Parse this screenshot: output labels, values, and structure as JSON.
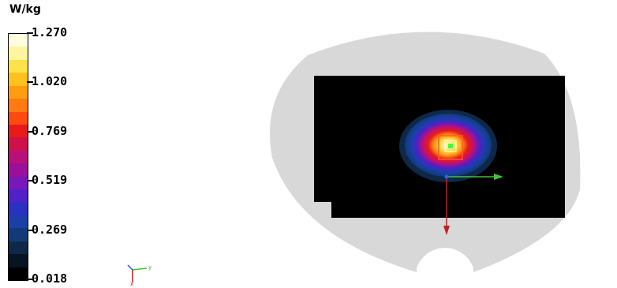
{
  "legend": {
    "unit": "W/kg",
    "ticks": [
      "1.270",
      "1.020",
      "0.769",
      "0.519",
      "0.269",
      "0.018"
    ],
    "colors": [
      "#fffde0",
      "#fff4a0",
      "#ffe24a",
      "#ffc21a",
      "#ff9c10",
      "#ff7a10",
      "#ff4a10",
      "#e81a1a",
      "#d0104a",
      "#b8107a",
      "#9a109c",
      "#7818b8",
      "#5020c8",
      "#2a30c0",
      "#1840a8",
      "#133a78",
      "#0e2848",
      "#061424",
      "#000000"
    ]
  },
  "axes_icon": {
    "x_label": "x",
    "y_label": "y"
  }
}
